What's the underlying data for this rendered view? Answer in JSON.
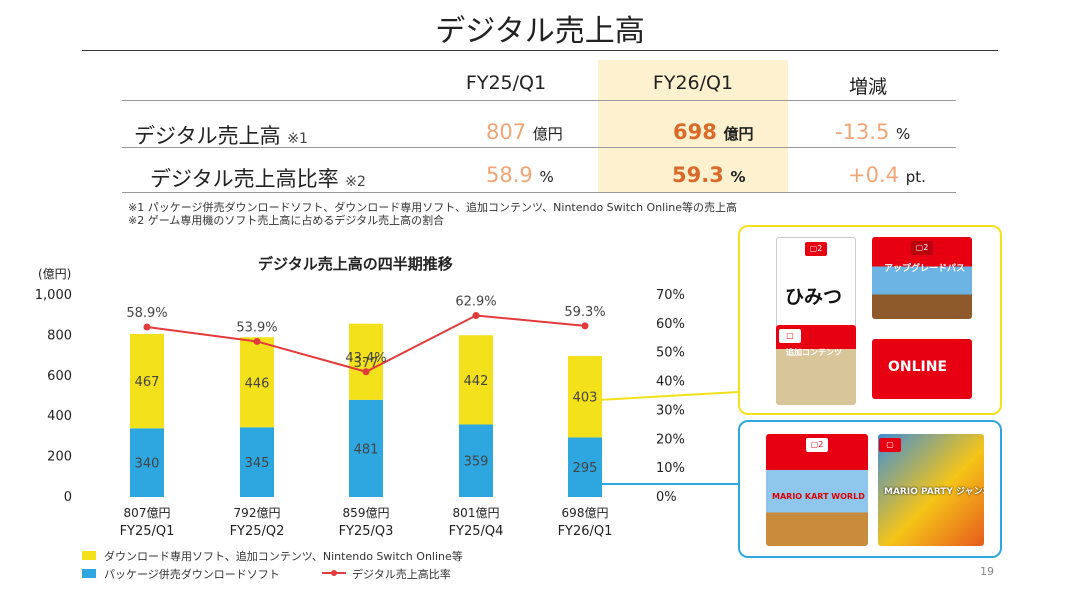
{
  "title": "デジタル売上高",
  "table": {
    "headers": [
      "FY25/Q1",
      "FY26/Q1",
      "増減"
    ],
    "rows": [
      {
        "label": "デジタル売上高",
        "note": "※1",
        "prev": "807",
        "prev_unit": "億円",
        "curr": "698",
        "curr_unit": "億円",
        "change": "-13.5",
        "change_unit": "%"
      },
      {
        "label": "デジタル売上高比率",
        "note": "※2",
        "prev": "58.9",
        "prev_unit": "%",
        "curr": "59.3",
        "curr_unit": "%",
        "change": "+0.4",
        "change_unit": "pt."
      }
    ],
    "footnotes": [
      "※1 パッケージ併売ダウンロードソフト、ダウンロード専用ソフト、追加コンテンツ、Nintendo Switch Online等の売上高",
      "※2 ゲーム専用機のソフト売上高に占めるデジタル売上高の割合"
    ]
  },
  "chart_data": {
    "type": "bar",
    "title": "デジタル売上高の四半期推移",
    "ylabel": "(億円)",
    "ylim": [
      0,
      1000
    ],
    "y_ticks": [
      "0",
      "200",
      "400",
      "600",
      "800",
      "1,000"
    ],
    "y2_ticks": [
      "0%",
      "10%",
      "20%",
      "30%",
      "40%",
      "50%",
      "60%",
      "70%"
    ],
    "y2lim": [
      0,
      70
    ],
    "categories": [
      "FY25/Q1",
      "FY25/Q2",
      "FY25/Q3",
      "FY25/Q4",
      "FY26/Q1"
    ],
    "totals": [
      "807億円",
      "792億円",
      "859億円",
      "801億円",
      "698億円"
    ],
    "series": [
      {
        "name": "パッケージ併売ダウンロードソフト",
        "values": [
          340,
          345,
          481,
          359,
          295
        ],
        "color": "#2ea7e0",
        "stack": "bottom"
      },
      {
        "name": "ダウンロード専用ソフト、追加コンテンツ、Nintendo Switch Online等",
        "values": [
          467,
          446,
          377,
          442,
          403
        ],
        "color": "#f2e11b",
        "stack": "top"
      },
      {
        "name": "デジタル売上高比率",
        "type": "line",
        "axis": "right",
        "values": [
          58.9,
          53.9,
          43.4,
          62.9,
          59.3
        ],
        "labels": [
          "58.9%",
          "53.9%",
          "43.4%",
          "62.9%",
          "59.3%"
        ],
        "color": "#e33b3b"
      }
    ]
  },
  "products": {
    "download_only": [
      "ひみつ",
      "アップグレードパス",
      "追加コンテンツ",
      "ONLINE"
    ],
    "bundled": [
      "MARIO KART WORLD",
      "MARIO PARTY ジャンボリー"
    ]
  },
  "page_number": "19"
}
